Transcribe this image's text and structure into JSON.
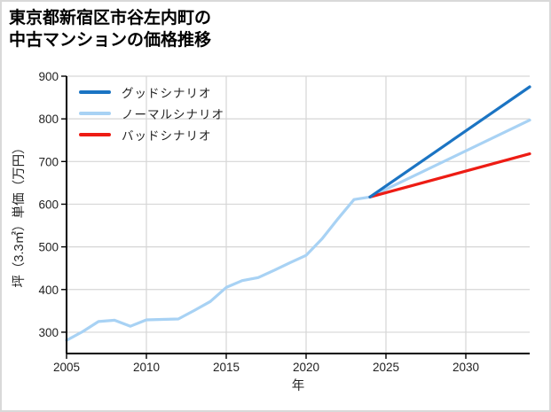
{
  "figure": {
    "background": "#ffffff",
    "border_color": "#d9d9d9",
    "title_line1": "東京都新宿区市谷左内町の",
    "title_line2": "中古マンションの価格推移"
  },
  "legend": {
    "items": [
      {
        "label": "グッドシナリオ",
        "color": "#1b74c3"
      },
      {
        "label": "ノーマルシナリオ",
        "color": "#a8d2f4"
      },
      {
        "label": "バッドシナリオ",
        "color": "#ed1c14"
      }
    ]
  },
  "chart_data": {
    "type": "line",
    "title": "東京都新宿区市谷左内町の中古マンションの価格推移",
    "xlabel": "年",
    "ylabel": "坪（3.3㎡）単価（万円）",
    "xlim": [
      2005,
      2034
    ],
    "ylim": [
      250,
      900
    ],
    "x_ticks": [
      2005,
      2010,
      2015,
      2020,
      2025,
      2030
    ],
    "y_ticks": [
      300,
      400,
      500,
      600,
      700,
      800,
      900
    ],
    "grid": true,
    "grid_color": "#d6d6d6",
    "legend_position": "upper-left-inside",
    "series": [
      {
        "name": "ノーマルシナリオ",
        "color": "#a8d2f4",
        "x": [
          2005,
          2006,
          2007,
          2008,
          2009,
          2010,
          2011,
          2012,
          2013,
          2014,
          2015,
          2016,
          2017,
          2018,
          2019,
          2020,
          2021,
          2022,
          2023,
          2024,
          2034
        ],
        "values": [
          281,
          301,
          325,
          328,
          314,
          329,
          330,
          331,
          351,
          372,
          405,
          421,
          428,
          445,
          463,
          480,
          519,
          566,
          611,
          617,
          797
        ]
      },
      {
        "name": "バッドシナリオ",
        "color": "#ed1c14",
        "x": [
          2024,
          2034
        ],
        "values": [
          617,
          718
        ]
      },
      {
        "name": "グッドシナリオ",
        "color": "#1b74c3",
        "x": [
          2024,
          2034
        ],
        "values": [
          617,
          875
        ]
      }
    ]
  }
}
